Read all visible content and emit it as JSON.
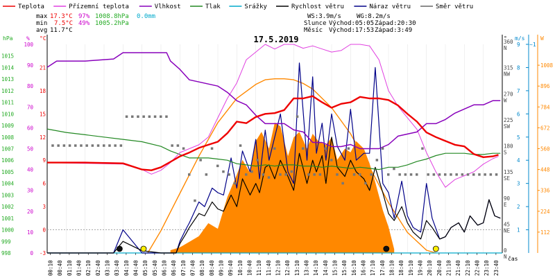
{
  "colors": {
    "teplota": "#ee0000",
    "pocitova": "#e040e0",
    "vlhkost": "#8800bb",
    "tlak": "#228822",
    "srazky": "#00aacc",
    "rychlost": "#000000",
    "naraz": "#000088",
    "smer": "#666666",
    "slunce": "#ff8800",
    "axis_hpa": "#22aa22",
    "axis_pct": "#cc00cc",
    "axis_c": "#ee0000",
    "axis_ms": "#0088cc",
    "axis_wm": "#ff8800"
  },
  "legend": [
    {
      "label": "Teplota",
      "color": "#ee0000"
    },
    {
      "label": "Přízemní teplota",
      "color": "#e040e0"
    },
    {
      "label": "Vlhkost",
      "color": "#8800bb"
    },
    {
      "label": "Tlak",
      "color": "#228822"
    },
    {
      "label": "Srážky",
      "color": "#00aacc"
    },
    {
      "label": "Rychlost větru",
      "color": "#000000"
    },
    {
      "label": "Náraz větru",
      "color": "#000088"
    },
    {
      "label": "Směr větru",
      "color": "#666666"
    }
  ],
  "stats": {
    "max": {
      "label": "max",
      "temp": "17.3°C",
      "hum": "97%",
      "press": "1008.8hPa",
      "rain": "0.0mm"
    },
    "min": {
      "label": "min",
      "temp": "7.5°C",
      "hum": "49%",
      "press": "1005.2hPa"
    },
    "avg": {
      "label": "avg",
      "temp": "11.7°C"
    }
  },
  "wind_info": {
    "ws": "WS:3.9m/s",
    "wg": "WG:8.2m/s"
  },
  "sun_info": {
    "label": "Slunce",
    "rise": "Východ:05:05",
    "set": "Západ:20:30"
  },
  "moon_info": {
    "label": "Měsíc",
    "rise": "Východ:17:53",
    "set": "Západ:3:49"
  },
  "date": "17.5.2019",
  "axis_units": {
    "hpa": "hPa",
    "pct": "%",
    "c": "°C",
    "deg": "°",
    "ms": "m/s",
    "wm": "W",
    "time": "čas"
  },
  "axis_ticks": {
    "hpa": [
      "1015",
      "1014",
      "1013",
      "1012",
      "1011",
      "1010",
      "1009",
      "1008",
      "1007",
      "1006",
      "1005",
      "1004",
      "1003",
      "1002",
      "1001",
      "1000",
      "999",
      "998"
    ],
    "pct": [
      "100",
      "90",
      "80",
      "70",
      "60",
      "50",
      "40",
      "30",
      "20",
      "10",
      "0"
    ],
    "c": [
      "21",
      "18",
      "15",
      "12",
      "9",
      "6",
      "3",
      "0",
      "-3"
    ],
    "deg": [
      {
        "num": "360",
        "dir": "N"
      },
      {
        "num": "315",
        "dir": "NW"
      },
      {
        "num": "270",
        "dir": "W"
      },
      {
        "num": "225",
        "dir": "SW"
      },
      {
        "num": "180",
        "dir": "S"
      },
      {
        "num": "135",
        "dir": "SE"
      },
      {
        "num": "90",
        "dir": "E"
      },
      {
        "num": "45",
        "dir": "NE"
      },
      {
        "num": "0",
        "dir": "N"
      }
    ],
    "ms": [
      "9",
      "8",
      "7",
      "6",
      "5",
      "4",
      "3",
      "2",
      "1"
    ],
    "wm": [
      "1008",
      "896",
      "784",
      "672",
      "560",
      "448",
      "336",
      "224",
      "112"
    ],
    "ms_top": "~1"
  },
  "time_labels": [
    "00:10",
    "00:40",
    "01:10",
    "01:40",
    "02:10",
    "02:40",
    "03:10",
    "03:40",
    "04:10",
    "04:40",
    "05:10",
    "05:40",
    "06:10",
    "06:40",
    "07:10",
    "07:40",
    "08:10",
    "08:40",
    "09:10",
    "09:40",
    "10:10",
    "10:40",
    "11:10",
    "11:40",
    "12:10",
    "12:40",
    "13:10",
    "13:40",
    "14:10",
    "14:40",
    "15:10",
    "15:40",
    "16:10",
    "16:40",
    "17:10",
    "17:40",
    "18:10",
    "18:40",
    "19:10",
    "19:40",
    "20:10",
    "20:40",
    "21:10",
    "21:40",
    "22:10",
    "22:40",
    "23:10",
    "23:40"
  ],
  "chart_data": {
    "type": "line",
    "title": "17.5.2019",
    "xlabel": "čas",
    "x_range_hours": [
      0,
      24
    ],
    "series": [
      {
        "name": "Teplota",
        "unit": "°C",
        "x": [
          0,
          2,
          4,
          5,
          5.5,
          6,
          6.5,
          7,
          7.5,
          8,
          8.5,
          9,
          9.5,
          10,
          10.5,
          11,
          11.5,
          12,
          12.5,
          13,
          13.5,
          14,
          14.5,
          15,
          15.5,
          16,
          16.5,
          17,
          17.5,
          18,
          18.5,
          19,
          19.5,
          20,
          20.5,
          21,
          21.5,
          22,
          22.5,
          23,
          23.5,
          23.8
        ],
        "values": [
          8.7,
          8.7,
          8.6,
          7.8,
          7.7,
          8.1,
          8.8,
          9.5,
          10,
          10.6,
          11,
          11.4,
          12.5,
          14,
          13.8,
          14.6,
          15,
          15.1,
          15.5,
          17,
          17,
          17.3,
          16.5,
          15.8,
          16.3,
          16.5,
          17.2,
          17,
          17,
          16.8,
          16.1,
          15,
          14,
          12.6,
          12,
          11.5,
          11,
          10.8,
          9.8,
          9.4,
          9.5,
          9.7
        ]
      },
      {
        "name": "Přízemní teplota",
        "unit": "°C",
        "x": [
          0,
          2,
          4,
          5,
          5.5,
          6,
          6.5,
          7,
          7.5,
          8,
          8.5,
          9,
          9.5,
          10,
          10.5,
          11,
          11.5,
          12,
          12.5,
          13,
          13.5,
          14,
          14.5,
          15,
          15.5,
          16,
          16.5,
          17,
          17.5,
          18,
          18.5,
          19,
          19.5,
          20,
          20.5,
          21,
          21.5,
          22,
          22.5,
          23,
          23.5,
          23.8
        ],
        "values": [
          8.7,
          8.6,
          8.5,
          7.8,
          7.2,
          7.7,
          8.7,
          10,
          10.5,
          11,
          12,
          14.5,
          17,
          19,
          22,
          23,
          24,
          23.4,
          24,
          24,
          23.5,
          23.8,
          23.4,
          23,
          23.2,
          24,
          24,
          23.8,
          22,
          18,
          16,
          14.5,
          13,
          10,
          7.5,
          5.5,
          6.5,
          7,
          7.5,
          8.5,
          9.2,
          9.5
        ]
      },
      {
        "name": "Vlhkost",
        "unit": "%",
        "x": [
          0,
          0.5,
          2,
          3.5,
          4,
          5,
          6,
          6.3,
          6.5,
          7,
          7.5,
          8,
          8.5,
          9,
          9.5,
          10,
          10.5,
          11,
          11.5,
          12,
          12.5,
          13,
          13.5,
          14,
          14.5,
          15,
          15.5,
          16,
          16.5,
          17,
          17.5,
          18,
          18.5,
          19,
          19.5,
          20,
          20.5,
          21,
          21.5,
          22,
          22.5,
          23,
          23.5,
          23.9
        ],
        "values": [
          89,
          92,
          92,
          93,
          96,
          96,
          96,
          96,
          92,
          88,
          83,
          82,
          81,
          80,
          77,
          73,
          71,
          66,
          62,
          62,
          62,
          59,
          58,
          53,
          53,
          51,
          51,
          52,
          50,
          50,
          50,
          52,
          56,
          57,
          58,
          62,
          62,
          64,
          67,
          69,
          71,
          71,
          73,
          73
        ]
      },
      {
        "name": "Tlak",
        "unit": "hPa",
        "x": [
          0,
          1,
          2,
          3,
          4,
          5,
          6,
          6.5,
          7,
          7.5,
          8,
          8.5,
          9,
          9.5,
          10,
          10.5,
          11,
          11.5,
          12,
          12.5,
          13,
          13.5,
          14,
          14.5,
          15,
          15.5,
          16,
          16.5,
          17,
          17.5,
          18,
          18.5,
          19,
          19.5,
          20,
          20.5,
          21,
          21.5,
          22,
          22.5,
          23,
          23.5,
          23.9
        ],
        "values": [
          1008.7,
          1008.4,
          1008.2,
          1008,
          1007.8,
          1007.6,
          1007.2,
          1006.8,
          1006.5,
          1006.2,
          1006.2,
          1006.2,
          1006.1,
          1006,
          1005.7,
          1005.6,
          1005.5,
          1005.6,
          1005.5,
          1005.6,
          1005.6,
          1005.5,
          1005.5,
          1005.4,
          1005.5,
          1005.4,
          1005.3,
          1005.4,
          1005.3,
          1005.2,
          1005.4,
          1005.4,
          1005.6,
          1005.9,
          1006.1,
          1006.4,
          1006.6,
          1006.6,
          1006.6,
          1006.5,
          1006.5,
          1006.6,
          1006.6
        ]
      },
      {
        "name": "Rychlost větru",
        "unit": "m/s",
        "x": [
          0,
          3.5,
          4,
          5,
          6,
          6.8,
          7,
          7.3,
          7.5,
          8,
          8.3,
          8.7,
          9,
          9.3,
          9.7,
          10,
          10.3,
          10.7,
          11,
          11.2,
          11.5,
          11.7,
          12,
          12.3,
          12.7,
          13,
          13.3,
          13.7,
          14,
          14.2,
          14.5,
          14.7,
          15,
          15.3,
          15.7,
          16,
          16.3,
          16.7,
          17,
          17.3,
          17.7,
          18,
          18.3,
          18.7,
          19,
          19.3,
          19.7,
          20,
          20.3,
          20.7,
          21,
          21.3,
          21.7,
          22,
          22.3,
          22.7,
          23,
          23.3,
          23.6,
          23.9
        ],
        "values": [
          0,
          0,
          0.5,
          0.1,
          0,
          0,
          0.4,
          0.8,
          1.1,
          1.7,
          1.6,
          2.2,
          1.9,
          1.8,
          2.5,
          2.0,
          3.2,
          2.5,
          3.0,
          2.6,
          3.7,
          3.8,
          3.2,
          4.0,
          3.3,
          2.7,
          4.3,
          3.0,
          4.0,
          3.5,
          4.2,
          3.0,
          5.0,
          3.7,
          3.3,
          4.0,
          3.5,
          3.2,
          2.7,
          3.7,
          2.6,
          1.7,
          1.4,
          2.0,
          1.3,
          0.9,
          0.6,
          1.4,
          1.1,
          0.6,
          0.7,
          1.1,
          1.3,
          0.9,
          1.6,
          1.2,
          1.3,
          2.3,
          1.6,
          1.5
        ]
      },
      {
        "name": "Náraz větru",
        "unit": "m/s",
        "x": [
          0,
          3.5,
          4,
          5,
          6,
          6.8,
          7,
          7.3,
          7.5,
          8,
          8.3,
          8.7,
          9,
          9.3,
          9.7,
          10,
          10.3,
          10.7,
          11,
          11.2,
          11.5,
          11.7,
          12,
          12.3,
          12.7,
          13,
          13.3,
          13.7,
          14,
          14.2,
          14.5,
          14.7,
          15,
          15.3,
          15.7,
          16,
          16.3,
          16.7,
          17,
          17.3,
          17.7,
          18,
          18.3,
          18.7,
          19,
          19.3,
          19.7,
          20,
          20.3,
          20.7,
          21,
          21.3,
          21.7,
          22,
          22.3,
          22.7,
          23,
          23.3,
          23.6,
          23.9
        ],
        "values": [
          0,
          0,
          1.0,
          0,
          0,
          0,
          0.5,
          1.0,
          1.3,
          2.2,
          2.0,
          2.8,
          2.6,
          2.5,
          4.1,
          2.8,
          4.4,
          3.5,
          4.9,
          3.2,
          5.3,
          4.0,
          5.0,
          6.0,
          3.5,
          3.0,
          8.2,
          4.0,
          7.6,
          4.3,
          5.6,
          4.0,
          6.0,
          4.6,
          4.0,
          6.2,
          4.0,
          4.3,
          4.3,
          8.0,
          3.0,
          2.6,
          1.5,
          3.1,
          1.6,
          1.1,
          0.9,
          3.0,
          1.5,
          0.6,
          0.7,
          1.1,
          1.3,
          0.9,
          1.6,
          1.2,
          1.3,
          2.3,
          1.6,
          1.5
        ]
      },
      {
        "name": "Srážky",
        "unit": "mm",
        "x": [
          0,
          24
        ],
        "values": [
          0,
          0
        ]
      },
      {
        "name": "Sluneční záření",
        "unit": "W",
        "x": [
          5.3,
          6,
          7,
          8,
          9,
          10,
          11,
          11.5,
          12,
          12.5,
          13,
          13.5,
          14,
          15,
          16,
          17,
          18,
          19,
          20,
          20.5
        ],
        "values": [
          0,
          120,
          320,
          520,
          700,
          830,
          905,
          930,
          935,
          935,
          930,
          910,
          880,
          780,
          640,
          460,
          270,
          110,
          15,
          0
        ]
      }
    ],
    "radiation_fill": {
      "name": "Sluneční záření (naměřené)",
      "unit": "W",
      "x": [
        6.5,
        7,
        7.5,
        8,
        8.5,
        9,
        9.5,
        10,
        10.3,
        10.7,
        11,
        11.3,
        11.7,
        12,
        12.3,
        12.7,
        13,
        13.3,
        13.7,
        14,
        14.3,
        14.7,
        15,
        15.3,
        15.7,
        16,
        16.3,
        16.7,
        17,
        17.3,
        17.7,
        18,
        18.3
      ],
      "values": [
        15,
        30,
        60,
        90,
        160,
        130,
        300,
        420,
        500,
        430,
        600,
        650,
        560,
        700,
        680,
        520,
        620,
        650,
        560,
        640,
        600,
        580,
        620,
        500,
        560,
        540,
        600,
        560,
        480,
        380,
        230,
        140,
        20
      ]
    },
    "wind_direction_deg": {
      "x": [
        0.3,
        0.6,
        0.9,
        1.2,
        1.5,
        1.8,
        2.1,
        2.4,
        2.7,
        3.0,
        3.3,
        3.6,
        3.9,
        4.2,
        4.5,
        4.8,
        5.1,
        5.4,
        5.7,
        6.0,
        6.3,
        6.6,
        6.9,
        7.2,
        7.5,
        7.8,
        8.1,
        8.4,
        8.7,
        9.0,
        9.3,
        9.6,
        9.9,
        10.2,
        10.5,
        10.8,
        11.1,
        11.4,
        11.7,
        12.0,
        12.3,
        12.6,
        12.9,
        13.2,
        13.5,
        13.8,
        14.1,
        14.4,
        14.7,
        15.0,
        15.3,
        15.6,
        15.9,
        16.2,
        16.5,
        16.8,
        17.1,
        17.4,
        17.7,
        18.0,
        18.3,
        18.6,
        18.9,
        19.2,
        19.5,
        19.8,
        20.1,
        20.4,
        20.7,
        21.0,
        21.3,
        21.6,
        21.9,
        22.2,
        22.5,
        22.8,
        23.1,
        23.4,
        23.7
      ],
      "values": [
        185,
        185,
        185,
        185,
        185,
        185,
        185,
        185,
        185,
        185,
        185,
        185,
        185,
        235,
        235,
        235,
        235,
        235,
        235,
        235,
        235,
        185,
        185,
        180,
        135,
        90,
        160,
        135,
        180,
        150,
        140,
        135,
        120,
        185,
        135,
        140,
        160,
        135,
        130,
        180,
        135,
        135,
        140,
        235,
        180,
        135,
        135,
        135,
        180,
        160,
        135,
        120,
        180,
        135,
        135,
        120,
        135,
        160,
        180,
        135,
        145,
        135,
        135,
        135,
        135,
        180,
        135,
        135,
        135,
        135,
        135,
        135,
        135,
        135,
        135,
        135,
        135,
        135,
        135
      ]
    },
    "markers": {
      "sunrise": "05:05",
      "sunset": "20:30",
      "moonrise": "17:53",
      "moonset": "3:49"
    },
    "ranges": {
      "hpa": [
        998,
        1016
      ],
      "pct": [
        0,
        100
      ],
      "c": [
        -3,
        24
      ],
      "ms": [
        0,
        9
      ],
      "wm": [
        0,
        1120
      ],
      "deg": [
        0,
        360
      ]
    },
    "grid": true
  }
}
